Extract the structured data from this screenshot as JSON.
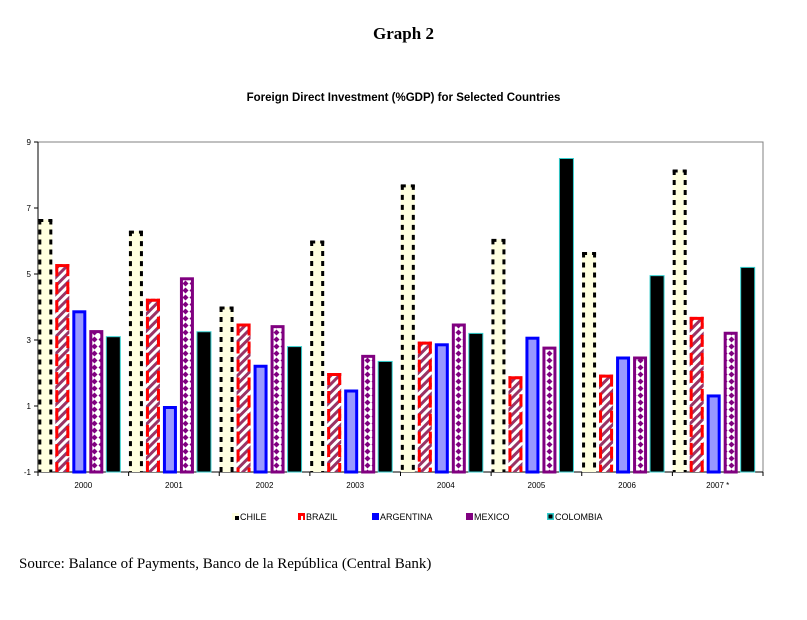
{
  "header": {
    "graph_label": "Graph 2"
  },
  "source_note": "Source: Balance of Payments, Banco de la República (Central Bank)",
  "chart_data": {
    "type": "bar",
    "title": "Foreign Direct Investment (%GDP) for Selected Countries",
    "xlabel": "",
    "ylabel": "",
    "categories": [
      "2000",
      "2001",
      "2002",
      "2003",
      "2004",
      "2005",
      "2006",
      "2007 *"
    ],
    "ylim": [
      -1,
      9
    ],
    "yticks": [
      -1,
      1,
      3,
      5,
      7,
      9
    ],
    "grid": false,
    "legend_position": "bottom",
    "series": [
      {
        "name": "CHILE",
        "values": [
          6.65,
          6.3,
          4.0,
          6.0,
          7.7,
          6.05,
          5.65,
          8.15
        ],
        "style": {
          "fill": "#ffffe0",
          "stroke": "#000000",
          "pattern": "dotted-border"
        }
      },
      {
        "name": "BRAZIL",
        "values": [
          5.3,
          4.25,
          3.5,
          2.0,
          2.95,
          1.9,
          1.95,
          3.7
        ],
        "style": {
          "fill": "#ffffff",
          "stroke": "#ff0000",
          "pattern": "diagonal-hatch",
          "hatch": "#993366"
        }
      },
      {
        "name": "ARGENTINA",
        "values": [
          3.9,
          1.0,
          2.25,
          1.5,
          2.9,
          3.1,
          2.5,
          1.35
        ],
        "style": {
          "fill": "#9999ff",
          "stroke": "#0000ff",
          "pattern": "solid"
        }
      },
      {
        "name": "MEXICO",
        "values": [
          3.3,
          4.9,
          3.45,
          2.55,
          3.5,
          2.8,
          2.5,
          3.25
        ],
        "style": {
          "fill": "#ffffff",
          "stroke": "#800080",
          "pattern": "diamond-dots",
          "dots": "#800080"
        }
      },
      {
        "name": "COLOMBIA",
        "values": [
          3.1,
          3.25,
          2.8,
          2.35,
          3.2,
          8.5,
          4.95,
          5.2
        ],
        "style": {
          "fill": "#000000",
          "stroke": "#33cccc",
          "pattern": "solid"
        }
      }
    ]
  }
}
